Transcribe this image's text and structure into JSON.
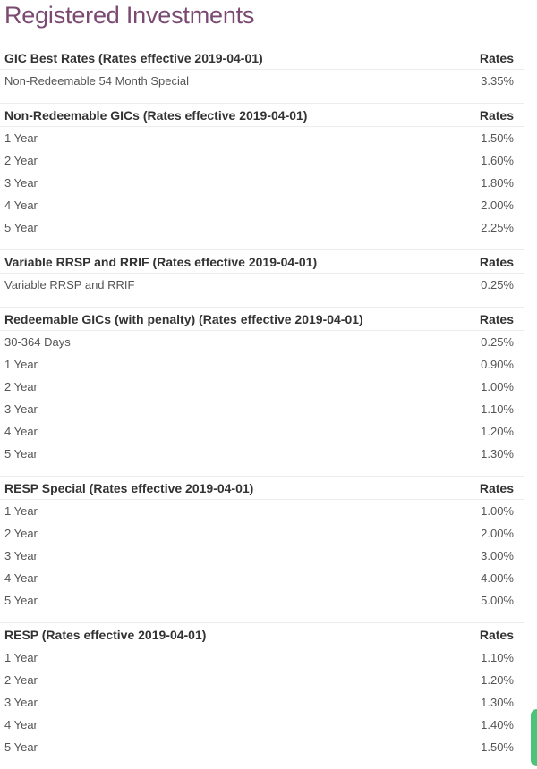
{
  "page": {
    "title": "Registered Investments",
    "accent_color": "#7a4a72",
    "widget_color": "#4cc37a"
  },
  "tables": [
    {
      "title": "GIC Best Rates (Rates effective 2019-04-01)",
      "rate_header": "Rates",
      "rows": [
        {
          "term": "Non-Redeemable 54 Month Special",
          "rate": "3.35%"
        }
      ]
    },
    {
      "title": "Non-Redeemable GICs (Rates effective 2019-04-01)",
      "rate_header": "Rates",
      "rows": [
        {
          "term": "1 Year",
          "rate": "1.50%"
        },
        {
          "term": "2 Year",
          "rate": "1.60%"
        },
        {
          "term": "3 Year",
          "rate": "1.80%"
        },
        {
          "term": "4 Year",
          "rate": "2.00%"
        },
        {
          "term": "5 Year",
          "rate": "2.25%"
        }
      ]
    },
    {
      "title": "Variable RRSP and RRIF (Rates effective 2019-04-01)",
      "rate_header": "Rates",
      "rows": [
        {
          "term": "Variable RRSP and RRIF",
          "rate": "0.25%"
        }
      ]
    },
    {
      "title": "Redeemable GICs (with penalty) (Rates effective 2019-04-01)",
      "rate_header": "Rates",
      "rows": [
        {
          "term": "30-364 Days",
          "rate": "0.25%"
        },
        {
          "term": "1 Year",
          "rate": "0.90%"
        },
        {
          "term": "2 Year",
          "rate": "1.00%"
        },
        {
          "term": "3 Year",
          "rate": "1.10%"
        },
        {
          "term": "4 Year",
          "rate": "1.20%"
        },
        {
          "term": "5 Year",
          "rate": "1.30%"
        }
      ]
    },
    {
      "title": "RESP Special (Rates effective 2019-04-01)",
      "rate_header": "Rates",
      "rows": [
        {
          "term": "1 Year",
          "rate": "1.00%"
        },
        {
          "term": "2 Year",
          "rate": "2.00%"
        },
        {
          "term": "3 Year",
          "rate": "3.00%"
        },
        {
          "term": "4 Year",
          "rate": "4.00%"
        },
        {
          "term": "5 Year",
          "rate": "5.00%"
        }
      ]
    },
    {
      "title": "RESP (Rates effective 2019-04-01)",
      "rate_header": "Rates",
      "rows": [
        {
          "term": "1 Year",
          "rate": "1.10%"
        },
        {
          "term": "2 Year",
          "rate": "1.20%"
        },
        {
          "term": "3 Year",
          "rate": "1.30%"
        },
        {
          "term": "4 Year",
          "rate": "1.40%"
        },
        {
          "term": "5 Year",
          "rate": "1.50%"
        }
      ]
    }
  ]
}
